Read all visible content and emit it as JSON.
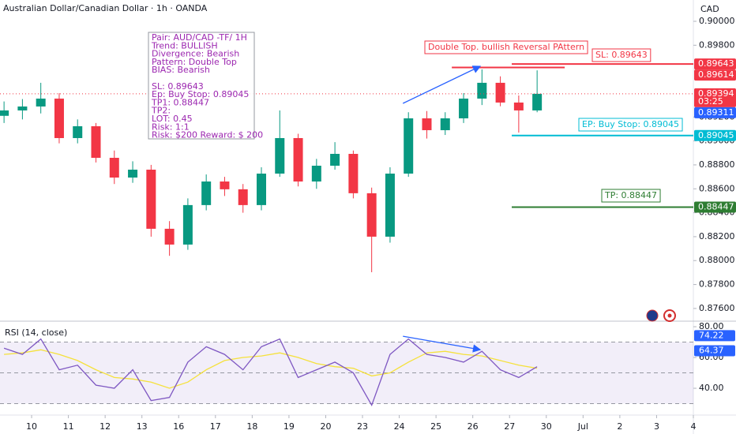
{
  "chart_data": {
    "type": "candlestick",
    "title": "Australian Dollar/Canadian Dollar · 1h · OANDA",
    "currency": "CAD",
    "xlim": [
      -0.86,
      18.0
    ],
    "xticks": [
      {
        "value": 0,
        "label": "10"
      },
      {
        "value": 1,
        "label": "11"
      },
      {
        "value": 2,
        "label": "12"
      },
      {
        "value": 3,
        "label": "13"
      },
      {
        "value": 4,
        "label": "16"
      },
      {
        "value": 5,
        "label": "17"
      },
      {
        "value": 6,
        "label": "18"
      },
      {
        "value": 7,
        "label": "19"
      },
      {
        "value": 8,
        "label": "20"
      },
      {
        "value": 9,
        "label": "23"
      },
      {
        "value": 10,
        "label": "24"
      },
      {
        "value": 11,
        "label": "25"
      },
      {
        "value": 12,
        "label": "26"
      },
      {
        "value": 13,
        "label": "27"
      },
      {
        "value": 14,
        "label": "30"
      },
      {
        "value": 15,
        "label": "Jul"
      },
      {
        "value": 16,
        "label": "2"
      },
      {
        "value": 17,
        "label": "3"
      },
      {
        "value": 18,
        "label": "4"
      }
    ],
    "ylim": [
      0.87507,
      0.90178
    ],
    "yticks": [
      {
        "value": 0.9,
        "label": "0.90000"
      },
      {
        "value": 0.898,
        "label": "0.89800"
      },
      {
        "value": 0.892,
        "label": "0.89200"
      },
      {
        "value": 0.89,
        "label": "0.89000"
      },
      {
        "value": 0.888,
        "label": "0.88800"
      },
      {
        "value": 0.886,
        "label": "0.88600"
      },
      {
        "value": 0.884,
        "label": "0.88400"
      },
      {
        "value": 0.882,
        "label": "0.88200"
      },
      {
        "value": 0.88,
        "label": "0.88000"
      },
      {
        "value": 0.878,
        "label": "0.87800"
      },
      {
        "value": 0.876,
        "label": "0.87600"
      }
    ],
    "up_color": "#089981",
    "down_color": "#f23645",
    "x": [
      -0.75,
      -0.25,
      0.25,
      0.75,
      1.25,
      1.75,
      2.25,
      2.75,
      3.25,
      3.75,
      4.25,
      4.75,
      5.25,
      5.75,
      6.25,
      6.75,
      7.25,
      7.75,
      8.25,
      8.75,
      9.25,
      9.75,
      10.25,
      10.75,
      11.25,
      11.75,
      12.25,
      12.75,
      13.25,
      13.75
    ],
    "open": [
      0.8921,
      0.89255,
      0.89288,
      0.89354,
      0.89024,
      0.89123,
      0.88859,
      0.88694,
      0.8876,
      0.88266,
      0.88134,
      0.88464,
      0.88661,
      0.88596,
      0.88464,
      0.88727,
      0.89024,
      0.88661,
      0.88793,
      0.88892,
      0.88563,
      0.882,
      0.88727,
      0.89189,
      0.8909,
      0.89189,
      0.89354,
      0.89486,
      0.89321,
      0.89255
    ],
    "high": [
      0.8933,
      0.8935,
      0.89486,
      0.894,
      0.8918,
      0.8915,
      0.8892,
      0.8883,
      0.888,
      0.8833,
      0.8852,
      0.8872,
      0.887,
      0.8864,
      0.8878,
      0.89255,
      0.8906,
      0.8885,
      0.8899,
      0.8892,
      0.8861,
      0.8878,
      0.8924,
      0.8925,
      0.8924,
      0.894,
      0.89598,
      0.8954,
      0.8938,
      0.8959
    ],
    "low": [
      0.8915,
      0.8918,
      0.8923,
      0.8898,
      0.8898,
      0.8882,
      0.8864,
      0.8865,
      0.882,
      0.8804,
      0.8809,
      0.8842,
      0.8854,
      0.884,
      0.8842,
      0.887,
      0.8862,
      0.886,
      0.8876,
      0.8852,
      0.87903,
      0.8815,
      0.887,
      0.8902,
      0.8905,
      0.8915,
      0.893,
      0.8929,
      0.8907,
      0.8924
    ],
    "close": [
      0.89255,
      0.89288,
      0.89354,
      0.89024,
      0.89123,
      0.88859,
      0.88694,
      0.8876,
      0.88266,
      0.88134,
      0.88464,
      0.88661,
      0.88596,
      0.88464,
      0.88727,
      0.89024,
      0.88661,
      0.88793,
      0.88892,
      0.88563,
      0.882,
      0.88727,
      0.89189,
      0.8909,
      0.89189,
      0.89354,
      0.89486,
      0.89321,
      0.89255,
      0.89394
    ],
    "levels": [
      {
        "label": "SL: 0.89643",
        "value": 0.89643,
        "from": 13.06,
        "color": "#f23645"
      },
      {
        "label": "EP: Buy Stop: 0.89045",
        "value": 0.89045,
        "from": 13.06,
        "color": "#00bcd4"
      },
      {
        "label": "TP: 0.88447",
        "value": 0.88447,
        "from": 13.06,
        "color": "#2e7d32"
      }
    ],
    "pattern": {
      "label": "Double Top. bullish Reversal PAttern",
      "value": 0.89614,
      "from": 11.43,
      "to": 14.5,
      "color": "#f23645"
    },
    "trend_arrow": {
      "x": [
        10.1,
        12.2
      ],
      "y": [
        0.89314,
        0.89624
      ],
      "color": "#2962ff"
    },
    "note": [
      "Pair: AUD/CAD -TF/ 1H",
      "Trend: BULLISH",
      "Divergence: Bearish",
      "Pattern: Double Top",
      "BIAS: Bearish",
      "",
      "SL: 0.89643",
      "Ep: Buy Stop: 0.89045",
      "TP1: 0.88447",
      "TP2:",
      "LOT: 0.45",
      "Risk:  1:1",
      "Risk: $200 Reward: $ 200"
    ],
    "price_tags": [
      {
        "value": 0.89643,
        "color": "#f23645"
      },
      {
        "value": 0.89614,
        "color": "#f23645"
      },
      {
        "value": 0.89394,
        "color": "#f23645",
        "countdown": "03:25"
      },
      {
        "value": 0.89311,
        "color": "#2962ff"
      },
      {
        "value": 0.89045,
        "color": "#00bcd4"
      },
      {
        "value": 0.88447,
        "color": "#2e7d32"
      }
    ],
    "rsi": {
      "title": "RSI (14, close)",
      "ylim": [
        23.1,
        83.1
      ],
      "yticks": [
        {
          "value": 80,
          "label": "80.00"
        },
        {
          "value": 60,
          "label": "60.00"
        },
        {
          "value": 40,
          "label": "40.00"
        }
      ],
      "bands": [
        70,
        50,
        30
      ],
      "color": "#7e57c2",
      "ma_color": "#f5e13b",
      "values": [
        66,
        62,
        72,
        52,
        55,
        42,
        40,
        52,
        32,
        34,
        57,
        67,
        62,
        52,
        67,
        72,
        47,
        52,
        57,
        50,
        29,
        62,
        72,
        62,
        60,
        57,
        64,
        52,
        47,
        54
      ],
      "ma_values": [
        62,
        63,
        65,
        62,
        58,
        52,
        47,
        46,
        44,
        40,
        44,
        52,
        58,
        60,
        61,
        63,
        60,
        56,
        54,
        53,
        48,
        50,
        57,
        63,
        64,
        62,
        61,
        58,
        55,
        53
      ],
      "tags": [
        {
          "value": 74.22,
          "color": "#2962ff"
        },
        {
          "value": 64.37,
          "color": "#2962ff"
        }
      ],
      "arrow": {
        "x": [
          10.1,
          12.2
        ],
        "y": [
          73.8,
          65.1
        ],
        "color": "#2962ff"
      }
    }
  }
}
